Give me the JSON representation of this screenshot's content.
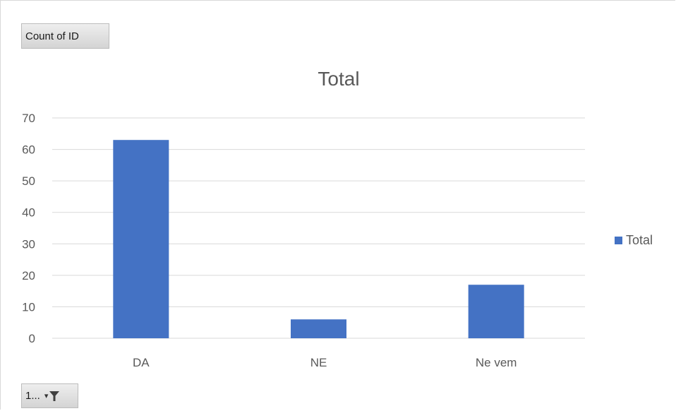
{
  "value_field_button": {
    "label": "Count of ID"
  },
  "axis_field_button": {
    "label": "1..."
  },
  "chart_data": {
    "type": "bar",
    "title": "Total",
    "categories": [
      "DA",
      "NE",
      "Ne vem"
    ],
    "series": [
      {
        "name": "Total",
        "values": [
          63,
          6,
          17
        ],
        "color": "#4472C4"
      }
    ],
    "ylim": [
      0,
      70
    ],
    "yticks": [
      0,
      10,
      20,
      30,
      40,
      50,
      60,
      70
    ],
    "xlabel": "",
    "ylabel": "",
    "grid": true,
    "legend_position": "right"
  }
}
